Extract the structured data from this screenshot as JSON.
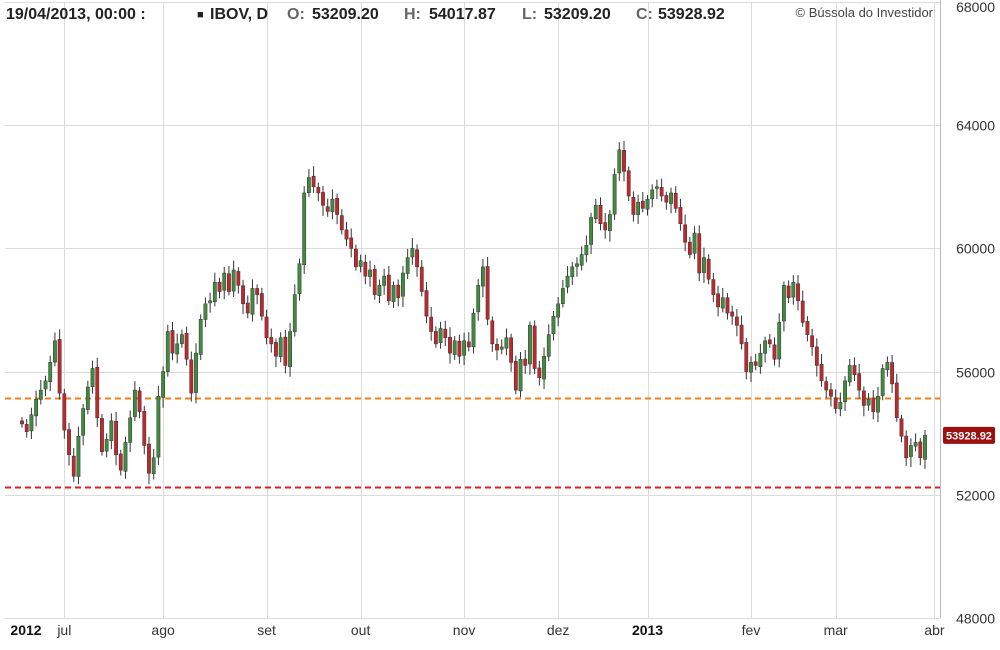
{
  "header": {
    "datetime": "19/04/2013, 00:00 :",
    "symbol_marker": "■",
    "symbol": "IBOV, D",
    "open_label": "O:",
    "open_value": "53209.20",
    "high_label": "H:",
    "high_value": "54017.87",
    "low_label": "L:",
    "low_value": "53209.20",
    "close_label": "C:",
    "close_value": "53928.92",
    "credit": "© Bússola do Investidor"
  },
  "last_price_label": "53928.92",
  "chart_data": {
    "type": "candlestick",
    "symbol": "IBOV",
    "interval": "D",
    "ylim": [
      48000,
      68000
    ],
    "y_ticks": [
      48000,
      52000,
      56000,
      60000,
      64000,
      68000
    ],
    "y_tick_labels": [
      "48000",
      "52000",
      "56000",
      "60000",
      "64000",
      "68000"
    ],
    "x_ticks": [
      {
        "label": "2012",
        "bold": true,
        "index": 0
      },
      {
        "label": "jul",
        "bold": false,
        "index": 9
      },
      {
        "label": "ago",
        "bold": false,
        "index": 30
      },
      {
        "label": "set",
        "bold": false,
        "index": 52
      },
      {
        "label": "out",
        "bold": false,
        "index": 72
      },
      {
        "label": "nov",
        "bold": false,
        "index": 94
      },
      {
        "label": "dez",
        "bold": false,
        "index": 114
      },
      {
        "label": "2013",
        "bold": true,
        "index": 133
      },
      {
        "label": "fev",
        "bold": false,
        "index": 155
      },
      {
        "label": "mar",
        "bold": false,
        "index": 173
      },
      {
        "label": "abr",
        "bold": false,
        "index": 194
      }
    ],
    "reference_lines": [
      {
        "value": 55150,
        "color": "#f07f1b"
      },
      {
        "value": 52250,
        "color": "#e01e1e"
      }
    ],
    "colors": {
      "up": "#3f8c3f",
      "down": "#c2282b",
      "wick": "#333333"
    },
    "closes": [
      54300,
      54050,
      54600,
      55100,
      55400,
      55700,
      56300,
      57000,
      55300,
      54100,
      53300,
      52600,
      53900,
      54800,
      55500,
      56100,
      54500,
      53400,
      53800,
      54400,
      53300,
      52800,
      53700,
      54500,
      55400,
      54700,
      53600,
      52700,
      53200,
      55200,
      56000,
      57300,
      56600,
      56900,
      57200,
      56400,
      55300,
      56600,
      57700,
      58200,
      58300,
      58900,
      58600,
      59200,
      58600,
      59300,
      58800,
      58200,
      57900,
      58700,
      58500,
      57800,
      57100,
      56900,
      56500,
      57100,
      56200,
      57300,
      58500,
      59500,
      61800,
      62300,
      62000,
      61800,
      61400,
      61200,
      61600,
      61100,
      60600,
      60300,
      60000,
      59400,
      59600,
      59100,
      59300,
      58500,
      58800,
      59100,
      58300,
      58800,
      58400,
      59200,
      59700,
      60000,
      59400,
      58600,
      57800,
      57300,
      56900,
      57400,
      57100,
      56600,
      57000,
      56500,
      57000,
      56800,
      57900,
      58800,
      59400,
      57700,
      56900,
      56700,
      56800,
      57100,
      56300,
      55400,
      56400,
      56200,
      57500,
      56100,
      55800,
      56500,
      57200,
      57800,
      58200,
      58700,
      59100,
      59400,
      59500,
      59800,
      60100,
      61000,
      61400,
      60800,
      60600,
      61100,
      62400,
      63200,
      62500,
      61700,
      61100,
      61500,
      61300,
      61600,
      61900,
      62000,
      61700,
      61500,
      61800,
      61300,
      60800,
      60200,
      59800,
      60500,
      59200,
      59700,
      59000,
      58500,
      58100,
      58400,
      57900,
      57800,
      57500,
      56900,
      56000,
      56300,
      56200,
      56600,
      57000,
      56900,
      56400,
      57600,
      58800,
      58400,
      58900,
      58300,
      57600,
      57200,
      56800,
      56200,
      55700,
      55400,
      55200,
      54800,
      55000,
      55700,
      56200,
      55900,
      55400,
      54900,
      55100,
      54700,
      55200,
      56100,
      56300,
      55600,
      54500,
      53900,
      53200,
      53600,
      53700,
      53200,
      53928.92
    ]
  }
}
